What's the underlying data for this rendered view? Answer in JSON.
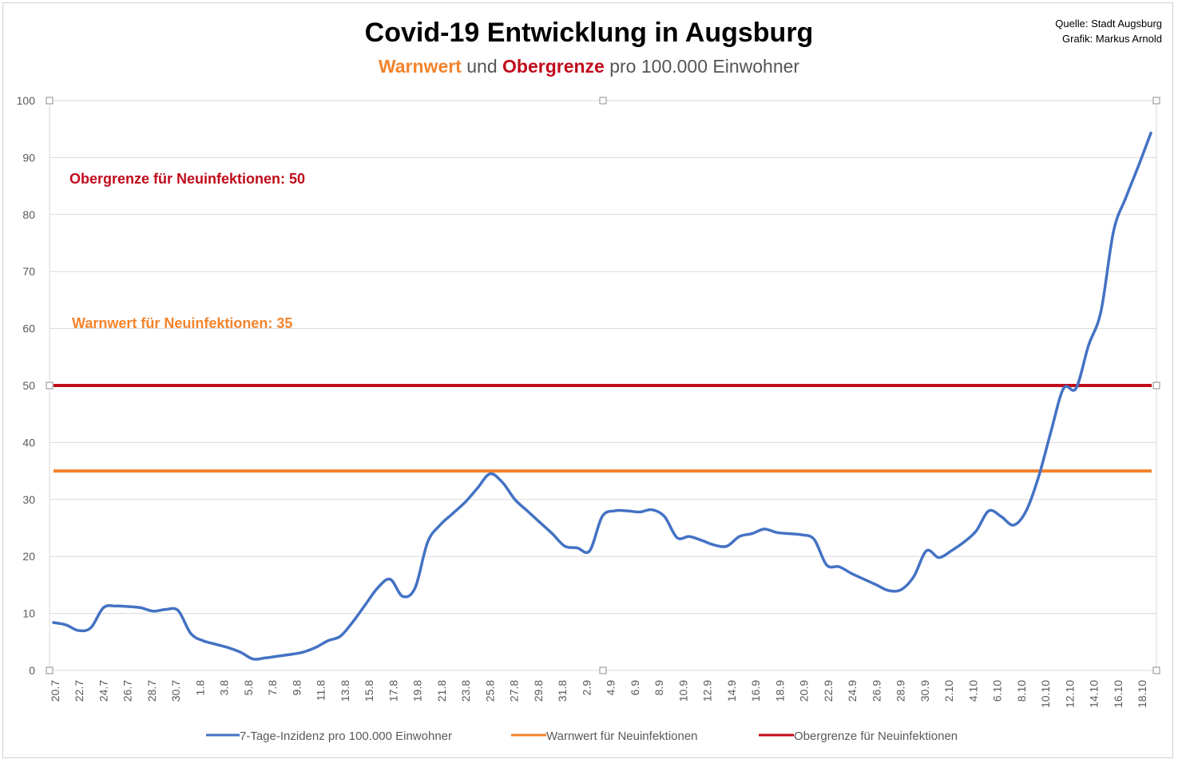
{
  "title": "Covid-19 Entwicklung in Augsburg",
  "subtitle": {
    "warn_word": "Warnwert",
    "und": "und",
    "ober_word": "Obergrenze",
    "rest": "pro 100.000 Einwohner"
  },
  "source": {
    "line1": "Quelle: Stadt Augsburg",
    "line2": "Grafik: Markus Arnold"
  },
  "annotations": {
    "obergrenze": "Obergrenze für Neuinfektionen: 50",
    "warnwert": "Warnwert für Neuinfektionen: 35"
  },
  "colors": {
    "series": "#4472c4",
    "warnwert": "#f4832b",
    "obergrenze": "#c00c1b",
    "grid": "#d9d9d9"
  },
  "chart_data": {
    "type": "line",
    "ylim": [
      0,
      100
    ],
    "yticks": [
      0,
      10,
      20,
      30,
      40,
      50,
      60,
      70,
      80,
      90,
      100
    ],
    "grid": true,
    "legend_position": "bottom",
    "x_tick_labels": [
      "20.7",
      "22.7",
      "24.7",
      "26.7",
      "28.7",
      "30.7",
      "1.8",
      "3.8",
      "5.8",
      "7.8",
      "9.8",
      "11.8",
      "13.8",
      "15.8",
      "17.8",
      "19.8",
      "21.8",
      "23.8",
      "25.8",
      "27.8",
      "29.8",
      "31.8",
      "2.9",
      "4.9",
      "6.9",
      "8.9",
      "10.9",
      "12.9",
      "14.9",
      "16.9",
      "18.9",
      "20.9",
      "22.9",
      "24.9",
      "26.9",
      "28.9",
      "30.9",
      "2.10",
      "4.10",
      "6.10",
      "8.10",
      "10.10",
      "12.10",
      "14.10",
      "16.10",
      "18.10"
    ],
    "series": [
      {
        "name": "7-Tage-Inzidenz pro 100.000 Einwohner",
        "values": [
          8.4,
          8.0,
          7.0,
          7.5,
          11.0,
          11.3,
          11.2,
          11.0,
          10.4,
          10.7,
          10.5,
          6.5,
          5.2,
          4.6,
          4.0,
          3.2,
          2.0,
          2.2,
          2.5,
          2.8,
          3.2,
          4.0,
          5.2,
          6.0,
          8.5,
          11.5,
          14.5,
          16.0,
          13.0,
          14.5,
          22.5,
          25.5,
          27.5,
          29.5,
          32.0,
          34.5,
          33.0,
          30.0,
          28.0,
          26.0,
          24.0,
          21.8,
          21.5,
          21.0,
          27.0,
          28.0,
          28.0,
          27.8,
          28.2,
          27.0,
          23.3,
          23.5,
          22.8,
          22.0,
          21.8,
          23.5,
          24.0,
          24.8,
          24.2,
          24.0,
          23.8,
          23.0,
          18.5,
          18.2,
          17.0,
          16.0,
          15.0,
          14.0,
          14.2,
          16.5,
          21.0,
          19.8,
          21.0,
          22.5,
          24.5,
          28.0,
          27.0,
          25.5,
          28.0,
          34.0,
          42.0,
          49.5,
          49.5,
          57.0,
          63.0,
          77.0,
          83.0,
          88.5,
          94.3
        ]
      },
      {
        "name": "Warnwert für Neuinfektionen",
        "value": 35
      },
      {
        "name": "Obergrenze für Neuinfektionen",
        "value": 50
      }
    ]
  }
}
